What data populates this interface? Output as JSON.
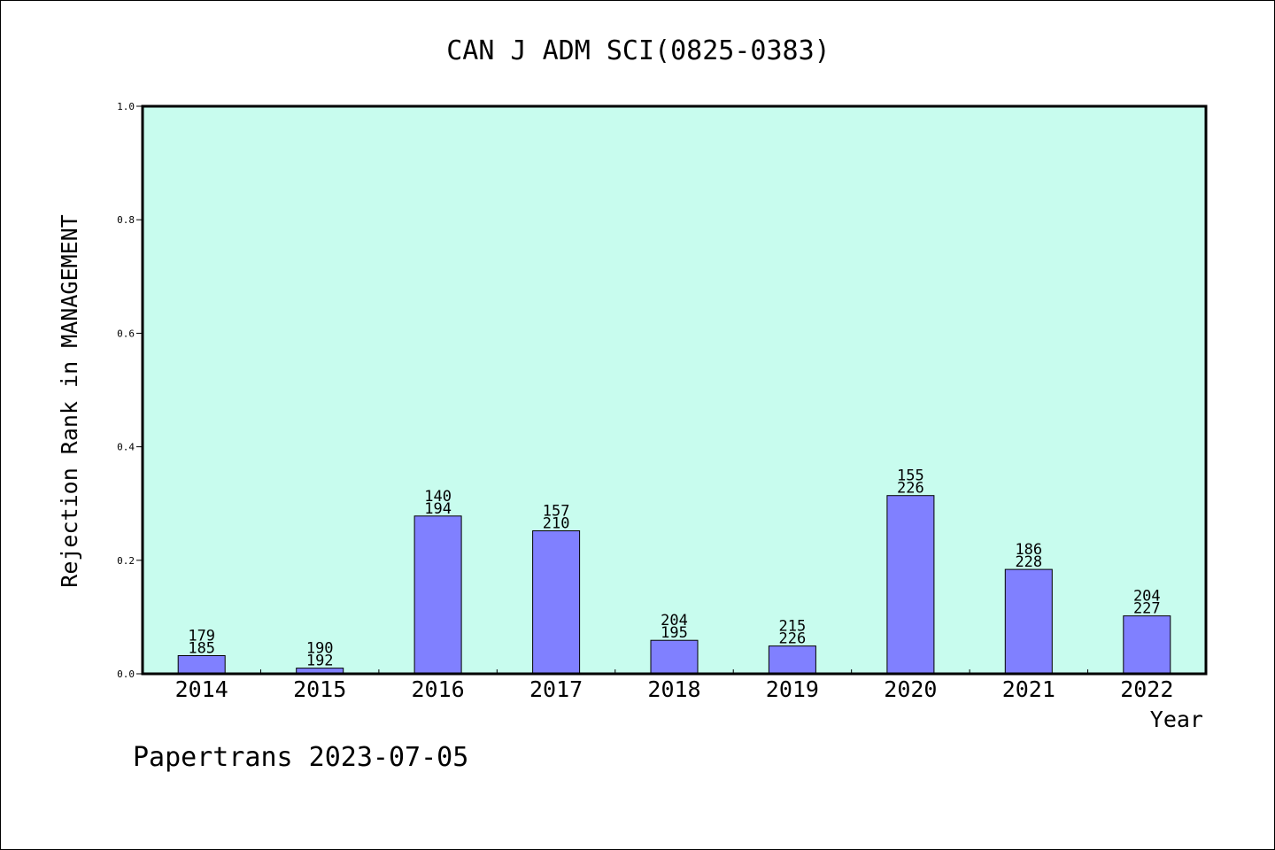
{
  "chart_data": {
    "type": "bar",
    "title": "CAN J ADM SCI(0825-0383)",
    "xlabel": "Year",
    "ylabel": "Rejection Rank in MANAGEMENT",
    "categories": [
      "2014",
      "2015",
      "2016",
      "2017",
      "2018",
      "2019",
      "2020",
      "2021",
      "2022"
    ],
    "values": [
      0.032,
      0.01,
      0.278,
      0.252,
      0.059,
      0.049,
      0.314,
      0.184,
      0.102
    ],
    "bar_labels": [
      [
        "179",
        "185"
      ],
      [
        "190",
        "192"
      ],
      [
        "140",
        "194"
      ],
      [
        "157",
        "210"
      ],
      [
        "204",
        "195"
      ],
      [
        "215",
        "226"
      ],
      [
        "155",
        "226"
      ],
      [
        "186",
        "228"
      ],
      [
        "204",
        "227"
      ]
    ],
    "ylim": [
      0,
      1.0
    ],
    "yticks": [
      "0.0",
      "0.2",
      "0.4",
      "0.6",
      "0.8",
      "1.0"
    ],
    "grid": false,
    "colors": {
      "plot_background": "#c8fcee",
      "bar_fill": "#8080ff",
      "bar_stroke": "#000000"
    },
    "footer": "Papertrans 2023-07-05"
  }
}
